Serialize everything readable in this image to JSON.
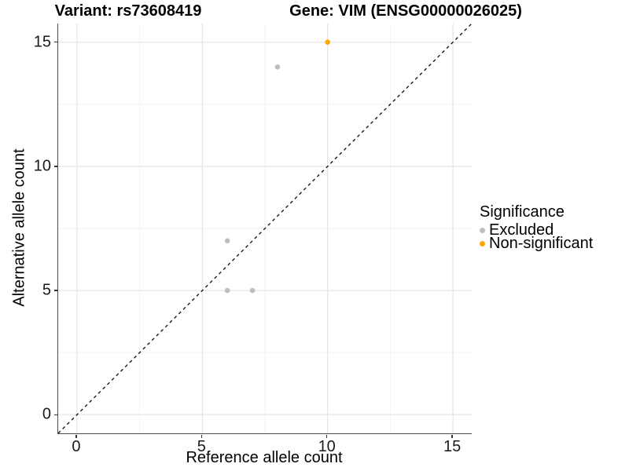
{
  "chart_data": {
    "type": "scatter",
    "titles": {
      "variant": "Variant: rs73608419",
      "gene": "Gene: VIM (ENSG00000026025)"
    },
    "xlabel": "Reference allele count",
    "ylabel": "Alternative allele count",
    "xlim": [
      -0.75,
      15.75
    ],
    "ylim": [
      -0.75,
      15.75
    ],
    "x_ticks": [
      0,
      5,
      10,
      15
    ],
    "y_ticks": [
      0,
      5,
      10,
      15
    ],
    "x_minor_ticks": [
      2.5,
      7.5,
      12.5
    ],
    "y_minor_ticks": [
      2.5,
      7.5,
      12.5
    ],
    "grid": "major+minor",
    "identity_line": {
      "style": "dashed",
      "from": [
        -0.75,
        -0.75
      ],
      "to": [
        15.75,
        15.75
      ],
      "color": "#1a1a1a"
    },
    "series": [
      {
        "name": "Excluded",
        "color": "#BEBEBE",
        "points": [
          [
            6,
            5
          ],
          [
            7,
            5
          ],
          [
            6,
            7
          ],
          [
            8,
            14
          ]
        ]
      },
      {
        "name": "Non-significant",
        "color": "#FFA500",
        "points": [
          [
            10,
            15
          ]
        ]
      }
    ],
    "legend": {
      "title": "Significance",
      "position": "right"
    },
    "colors": {
      "grid_major": "#e6e6e6",
      "grid_minor": "#f2f2f2",
      "axis_line": "#4d4d4d",
      "tick_mark": "#333333"
    }
  }
}
